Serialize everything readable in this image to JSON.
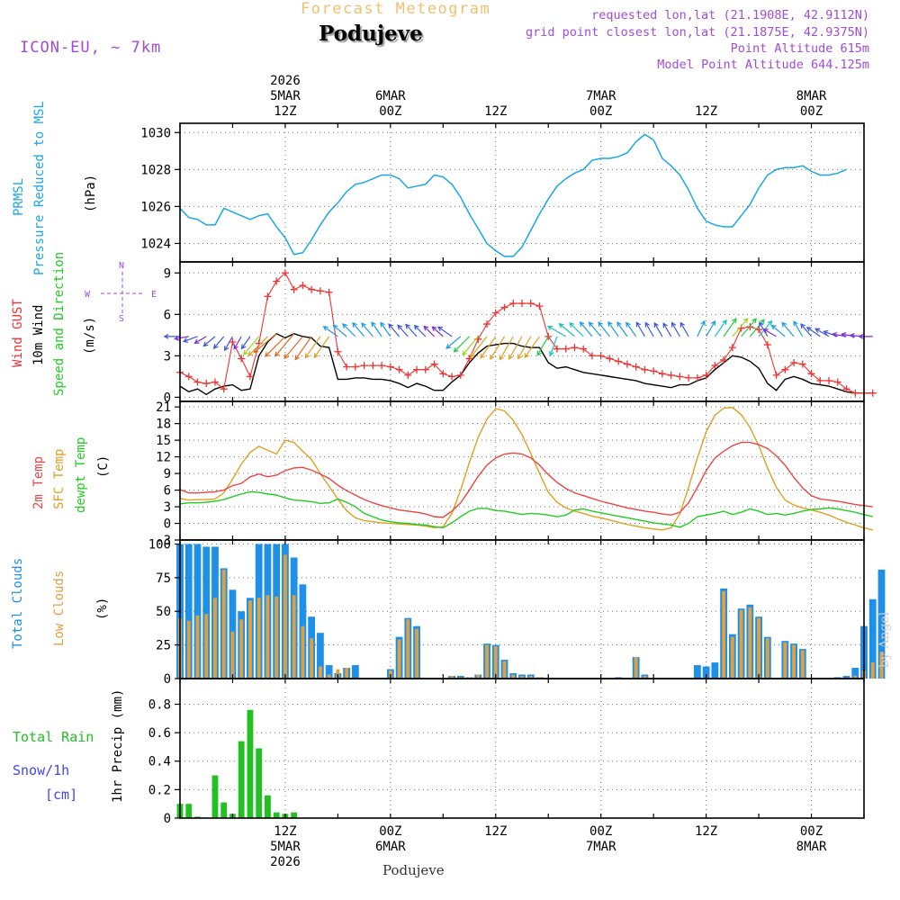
{
  "header": {
    "title_faded": "Forecast Meteogram",
    "location": "Podujeve",
    "model": "ICON-EU, ~ 7km",
    "requested": "requested lon,lat (21.1908E, 42.9112N)",
    "grid_point": "grid point closest lon,lat (21.1875E, 42.9375N)",
    "point_altitude": "Point Altitude 615m",
    "model_altitude": "Model Point Altitude 644.125m",
    "footer_location": "Podujeve",
    "credit": "by Angel"
  },
  "time_axis": {
    "top_labels": [
      {
        "lines": [
          "2026",
          "5MAR",
          "12Z"
        ],
        "hour": 12
      },
      {
        "lines": [
          "6MAR",
          "00Z"
        ],
        "hour": 24
      },
      {
        "lines": [
          "12Z"
        ],
        "hour": 36
      },
      {
        "lines": [
          "7MAR",
          "00Z"
        ],
        "hour": 48
      },
      {
        "lines": [
          "12Z"
        ],
        "hour": 60
      },
      {
        "lines": [
          "8MAR",
          "00Z"
        ],
        "hour": 72
      }
    ],
    "bottom_labels": [
      {
        "lines": [
          "12Z",
          "5MAR",
          "2026"
        ],
        "hour": 12
      },
      {
        "lines": [
          "00Z",
          "6MAR"
        ],
        "hour": 24
      },
      {
        "lines": [
          "12Z"
        ],
        "hour": 36
      },
      {
        "lines": [
          "00Z",
          "7MAR"
        ],
        "hour": 48
      },
      {
        "lines": [
          "12Z"
        ],
        "hour": 60
      },
      {
        "lines": [
          "00Z",
          "8MAR"
        ],
        "hour": 72
      }
    ]
  },
  "panels": {
    "pressure": {
      "labels": [
        "PRMSL",
        "Pressure Reduced to MSL"
      ],
      "unit": "(hPa)"
    },
    "wind": {
      "labels": [
        "Wind GUST",
        "10m Wind",
        "Speed and Direction"
      ],
      "unit": "(m/s)",
      "compass": {
        "n": "N",
        "s": "S",
        "e": "E",
        "w": "W"
      }
    },
    "temp": {
      "labels": [
        "2m Temp",
        "SFC Temp",
        "dewpt Temp"
      ],
      "unit": "(C)"
    },
    "clouds": {
      "labels": [
        "Total Clouds",
        "Low Clouds"
      ],
      "unit": "(%)"
    },
    "precip": {
      "labels": [
        "Total Rain",
        "Snow/1h",
        "[cm]"
      ],
      "unit": "1hr Precip (mm)"
    }
  },
  "colors": {
    "pressure": "#1aa6e8",
    "gust": "#ee3333",
    "wind": "#000000",
    "arrows": "#22cc22",
    "temp2m": "#ee4444",
    "sfc": "#e0a020",
    "dewpt": "#22cc22",
    "total_clouds": "#1e90e8",
    "low_clouds": "#e0a040",
    "rain": "#22c022",
    "snow": "#4444ee",
    "credit": "#cccccc"
  },
  "chart_data": {
    "type": "line",
    "x_unit": "hours since 2026-03-05 00Z",
    "x_range": [
      0,
      78
    ],
    "x_step_hours": 1,
    "pressure": {
      "ylim": [
        1023,
        1030.5
      ],
      "yticks": [
        1024,
        1026,
        1028,
        1030
      ],
      "values": [
        1025.9,
        1025.4,
        1025.3,
        1025.0,
        1025.0,
        1025.9,
        1025.7,
        1025.5,
        1025.3,
        1025.5,
        1025.6,
        1024.9,
        1024.3,
        1023.4,
        1023.5,
        1024.2,
        1025.0,
        1025.7,
        1026.2,
        1026.8,
        1027.2,
        1027.3,
        1027.5,
        1027.7,
        1027.7,
        1027.5,
        1027.0,
        1027.1,
        1027.2,
        1027.7,
        1027.6,
        1027.2,
        1026.5,
        1025.6,
        1024.8,
        1024.0,
        1023.6,
        1023.3,
        1023.3,
        1023.8,
        1024.7,
        1025.6,
        1026.4,
        1027.1,
        1027.5,
        1027.8,
        1028.0,
        1028.5,
        1028.6,
        1028.6,
        1028.7,
        1028.9,
        1029.5,
        1029.9,
        1029.6,
        1028.6,
        1028.2,
        1027.7,
        1026.9,
        1025.9,
        1025.2,
        1025.0,
        1024.9,
        1024.9,
        1025.5,
        1026.1,
        1027.0,
        1027.7,
        1028.0,
        1028.1,
        1028.1,
        1028.2,
        1027.9,
        1027.7,
        1027.7,
        1027.8,
        1028.0
      ]
    },
    "wind": {
      "ylim": [
        -0.3,
        9.8
      ],
      "yticks": [
        0,
        3,
        6,
        9
      ],
      "gust": [
        1.8,
        1.5,
        1.1,
        1.0,
        1.1,
        0.6,
        4.0,
        2.8,
        1.5,
        3.9,
        7.3,
        8.4,
        9.0,
        7.8,
        8.1,
        7.8,
        7.7,
        7.6,
        3.3,
        2.2,
        2.2,
        2.3,
        2.3,
        2.3,
        2.2,
        2.0,
        1.6,
        2.0,
        2.0,
        2.4,
        1.7,
        1.5,
        1.6,
        2.8,
        4.2,
        5.3,
        6.1,
        6.5,
        6.8,
        6.8,
        6.8,
        6.6,
        4.4,
        3.5,
        3.5,
        3.6,
        3.5,
        3.0,
        3.0,
        2.8,
        2.6,
        2.4,
        2.2,
        2.0,
        1.9,
        1.7,
        1.6,
        1.5,
        1.4,
        1.4,
        1.6,
        2.3,
        2.7,
        3.6,
        5.0,
        5.1,
        4.9,
        3.8,
        1.6,
        2.0,
        2.5,
        2.4,
        1.7,
        1.2,
        1.2,
        1.1,
        0.6,
        0.3,
        0.3,
        0.3
      ],
      "wind": [
        0.8,
        0.4,
        0.6,
        0.2,
        0.6,
        0.8,
        0.9,
        0.5,
        0.6,
        3.0,
        4.0,
        4.6,
        4.3,
        4.6,
        4.4,
        4.3,
        3.7,
        3.6,
        1.3,
        1.3,
        1.4,
        1.4,
        1.3,
        1.3,
        1.2,
        1.0,
        0.7,
        1.0,
        0.8,
        0.5,
        0.5,
        1.1,
        1.6,
        2.5,
        3.2,
        3.7,
        3.8,
        3.9,
        3.9,
        3.7,
        3.6,
        3.6,
        2.5,
        2.1,
        2.2,
        2.0,
        1.8,
        1.7,
        1.6,
        1.5,
        1.4,
        1.3,
        1.2,
        1.0,
        0.9,
        0.8,
        0.7,
        0.9,
        0.9,
        1.2,
        1.4,
        2.0,
        2.5,
        3.0,
        2.9,
        2.6,
        2.1,
        1.0,
        0.5,
        1.3,
        1.5,
        1.3,
        1.0,
        0.9,
        0.8,
        0.6,
        0.4,
        0.3,
        0.3,
        0.3
      ],
      "arrow_dirs_deg": [
        270,
        260,
        250,
        240,
        230,
        220,
        210,
        210,
        215,
        220,
        225,
        230,
        225,
        220,
        220,
        215,
        215,
        215,
        305,
        310,
        315,
        320,
        320,
        325,
        325,
        320,
        318,
        318,
        315,
        315,
        312,
        305,
        230,
        225,
        220,
        218,
        215,
        212,
        210,
        210,
        210,
        215,
        210,
        200,
        300,
        310,
        315,
        320,
        320,
        322,
        325,
        325,
        325,
        330,
        330,
        330,
        330,
        330,
        330,
        25,
        30,
        35,
        35,
        40,
        40,
        40,
        40,
        330,
        300,
        310,
        320,
        330,
        320,
        305,
        300,
        290,
        280,
        280,
        275,
        270
      ]
    },
    "temp": {
      "ylim": [
        -3,
        22
      ],
      "yticks": [
        -3,
        0,
        3,
        6,
        9,
        12,
        15,
        18,
        21
      ],
      "t2m": [
        6.1,
        5.5,
        5.5,
        5.6,
        5.7,
        6.0,
        6.8,
        7.2,
        8.4,
        8.9,
        8.4,
        8.7,
        9.5,
        10.0,
        10.1,
        9.6,
        8.9,
        8.1,
        6.9,
        5.9,
        5.1,
        4.3,
        3.7,
        3.2,
        2.8,
        2.4,
        2.2,
        2.0,
        1.7,
        1.2,
        1.1,
        2.2,
        3.7,
        6.0,
        8.5,
        10.5,
        11.8,
        12.5,
        12.7,
        12.5,
        11.8,
        10.5,
        8.8,
        7.4,
        6.3,
        5.5,
        5.0,
        4.5,
        4.0,
        3.6,
        3.2,
        2.8,
        2.5,
        2.2,
        2.0,
        1.7,
        1.5,
        2.0,
        3.7,
        6.5,
        9.5,
        11.8,
        13.0,
        14.0,
        14.6,
        14.6,
        14.2,
        13.5,
        12.2,
        10.5,
        8.3,
        6.4,
        5.0,
        4.4,
        4.2,
        4.0,
        3.7,
        3.4,
        3.2,
        3.0
      ],
      "sfc": [
        4.5,
        4.2,
        4.3,
        4.3,
        4.4,
        5.5,
        8.0,
        10.7,
        12.8,
        13.9,
        13.2,
        12.5,
        15.0,
        14.6,
        13.0,
        11.5,
        9.0,
        6.7,
        4.4,
        2.3,
        1.0,
        0.5,
        0.3,
        0.1,
        0.0,
        -0.1,
        -0.2,
        -0.3,
        -0.5,
        -0.8,
        -0.6,
        1.8,
        6.0,
        11.0,
        15.5,
        18.8,
        20.7,
        20.3,
        18.6,
        16.0,
        12.6,
        9.0,
        5.6,
        3.8,
        2.8,
        2.2,
        1.8,
        1.3,
        1.0,
        0.6,
        0.2,
        -0.2,
        -0.5,
        -0.8,
        -1.0,
        -1.2,
        -0.8,
        1.7,
        6.5,
        11.8,
        16.5,
        19.5,
        20.8,
        20.9,
        19.6,
        17.3,
        14.0,
        10.0,
        6.5,
        4.2,
        3.3,
        2.8,
        2.4,
        2.0,
        1.5,
        0.8,
        0.2,
        -0.3,
        -0.8,
        -1.2
      ],
      "dewpt": [
        3.5,
        3.7,
        3.7,
        3.8,
        4.0,
        4.3,
        4.8,
        5.3,
        5.7,
        5.6,
        5.3,
        5.1,
        4.6,
        4.2,
        4.1,
        3.9,
        3.6,
        3.7,
        4.4,
        3.8,
        3.0,
        1.8,
        1.2,
        0.6,
        0.3,
        0.1,
        0.0,
        -0.2,
        -0.3,
        -0.6,
        -0.8,
        0.1,
        1.2,
        2.2,
        2.7,
        2.7,
        2.3,
        2.2,
        1.9,
        1.6,
        1.8,
        1.7,
        1.5,
        1.2,
        1.5,
        2.4,
        2.6,
        2.2,
        1.9,
        1.6,
        1.3,
        1.0,
        0.7,
        0.4,
        0.1,
        -0.1,
        -0.3,
        -0.7,
        0.0,
        1.2,
        1.5,
        1.8,
        2.2,
        1.6,
        2.0,
        2.6,
        2.2,
        1.6,
        1.8,
        1.5,
        1.8,
        2.2,
        2.5,
        2.6,
        2.8,
        2.6,
        2.3,
        2.0,
        1.6,
        1.2
      ],
      "last_index": 79
    },
    "clouds": {
      "ylim": [
        0,
        103
      ],
      "yticks": [
        0,
        25,
        50,
        75,
        100
      ],
      "total": [
        100,
        100,
        100,
        98,
        98,
        82,
        66,
        50,
        60,
        100,
        100,
        100,
        100,
        90,
        70,
        46,
        34,
        10,
        4,
        8,
        10,
        0,
        0,
        0,
        7,
        31,
        45,
        39,
        0,
        0,
        0,
        2,
        2,
        1,
        3,
        26,
        25,
        14,
        4,
        3,
        3,
        1,
        0,
        0,
        0,
        0,
        0,
        0,
        0,
        0,
        1,
        0,
        16,
        3,
        0,
        0,
        0,
        0,
        0,
        10,
        9,
        12,
        67,
        33,
        52,
        55,
        46,
        31,
        0,
        28,
        26,
        22,
        0,
        0,
        0,
        1,
        2,
        8,
        39,
        59,
        81
      ],
      "low": [
        45,
        43,
        47,
        48,
        60,
        81,
        35,
        44,
        58,
        60,
        62,
        61,
        92,
        62,
        39,
        30,
        9,
        3,
        7,
        8,
        0,
        0,
        0,
        0,
        6,
        29,
        44,
        37,
        0,
        0,
        0,
        2,
        1,
        1,
        3,
        25,
        24,
        13,
        3,
        2,
        2,
        1,
        0,
        0,
        0,
        0,
        0,
        0,
        0,
        0,
        0,
        0,
        16,
        2,
        0,
        0,
        0,
        0,
        0,
        0,
        0,
        0,
        65,
        31,
        51,
        53,
        45,
        30,
        0,
        27,
        25,
        21,
        0,
        0,
        0,
        0,
        0,
        2,
        6,
        12,
        20
      ]
    },
    "precip": {
      "ylim": [
        0,
        0.98
      ],
      "yticks": [
        0,
        0.2,
        0.4,
        0.6,
        0.8
      ],
      "rain": [
        0.1,
        0.1,
        0.01,
        0.0,
        0.3,
        0.11,
        0.03,
        0.54,
        0.76,
        0.49,
        0.16,
        0.04,
        0.03,
        0.04
      ]
    }
  }
}
